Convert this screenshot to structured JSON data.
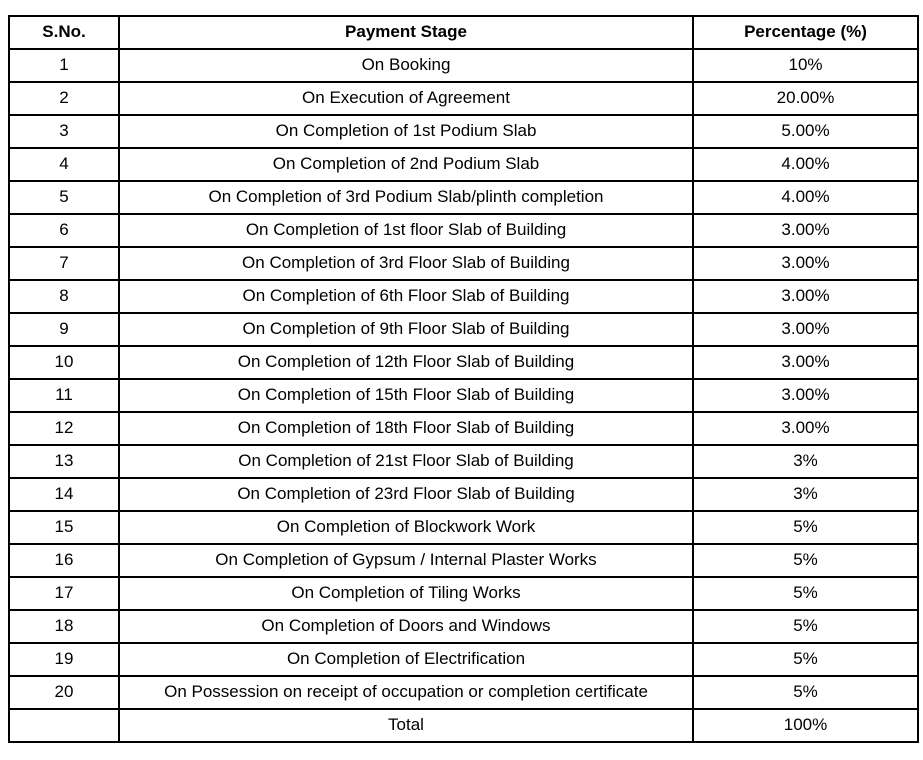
{
  "table": {
    "headers": [
      "S.No.",
      "Payment Stage",
      "Percentage (%)"
    ],
    "rows": [
      {
        "sno": "1",
        "stage": "On Booking",
        "percentage": "10%"
      },
      {
        "sno": "2",
        "stage": "On Execution of Agreement",
        "percentage": "20.00%"
      },
      {
        "sno": "3",
        "stage": "On Completion of 1st Podium Slab",
        "percentage": "5.00%"
      },
      {
        "sno": "4",
        "stage": "On Completion of 2nd Podium Slab",
        "percentage": "4.00%"
      },
      {
        "sno": "5",
        "stage": "On Completion of 3rd Podium Slab/plinth completion",
        "percentage": "4.00%"
      },
      {
        "sno": "6",
        "stage": "On Completion of 1st floor Slab of Building",
        "percentage": "3.00%"
      },
      {
        "sno": "7",
        "stage": "On Completion of 3rd Floor Slab of Building",
        "percentage": "3.00%"
      },
      {
        "sno": "8",
        "stage": "On Completion of 6th Floor Slab of Building",
        "percentage": "3.00%"
      },
      {
        "sno": "9",
        "stage": "On Completion of 9th Floor Slab of Building",
        "percentage": "3.00%"
      },
      {
        "sno": "10",
        "stage": "On Completion of 12th Floor Slab of Building",
        "percentage": "3.00%"
      },
      {
        "sno": "11",
        "stage": "On Completion of 15th Floor Slab of Building",
        "percentage": "3.00%"
      },
      {
        "sno": "12",
        "stage": "On Completion of 18th Floor Slab of Building",
        "percentage": "3.00%"
      },
      {
        "sno": "13",
        "stage": "On Completion of 21st Floor Slab of Building",
        "percentage": "3%"
      },
      {
        "sno": "14",
        "stage": "On Completion of 23rd Floor Slab of Building",
        "percentage": "3%"
      },
      {
        "sno": "15",
        "stage": "On Completion of Blockwork Work",
        "percentage": "5%"
      },
      {
        "sno": "16",
        "stage": "On Completion of Gypsum / Internal Plaster Works",
        "percentage": "5%"
      },
      {
        "sno": "17",
        "stage": "On Completion of Tiling Works",
        "percentage": "5%"
      },
      {
        "sno": "18",
        "stage": "On Completion of Doors and Windows",
        "percentage": "5%"
      },
      {
        "sno": "19",
        "stage": "On Completion of Electrification",
        "percentage": "5%"
      },
      {
        "sno": "20",
        "stage": "On Possession on receipt of occupation or completion certificate",
        "percentage": "5%"
      }
    ],
    "footer": {
      "sno": "",
      "stage": "Total",
      "percentage": "100%"
    }
  },
  "colors": {
    "border": "#000000",
    "text": "#000000",
    "background": "#ffffff"
  }
}
